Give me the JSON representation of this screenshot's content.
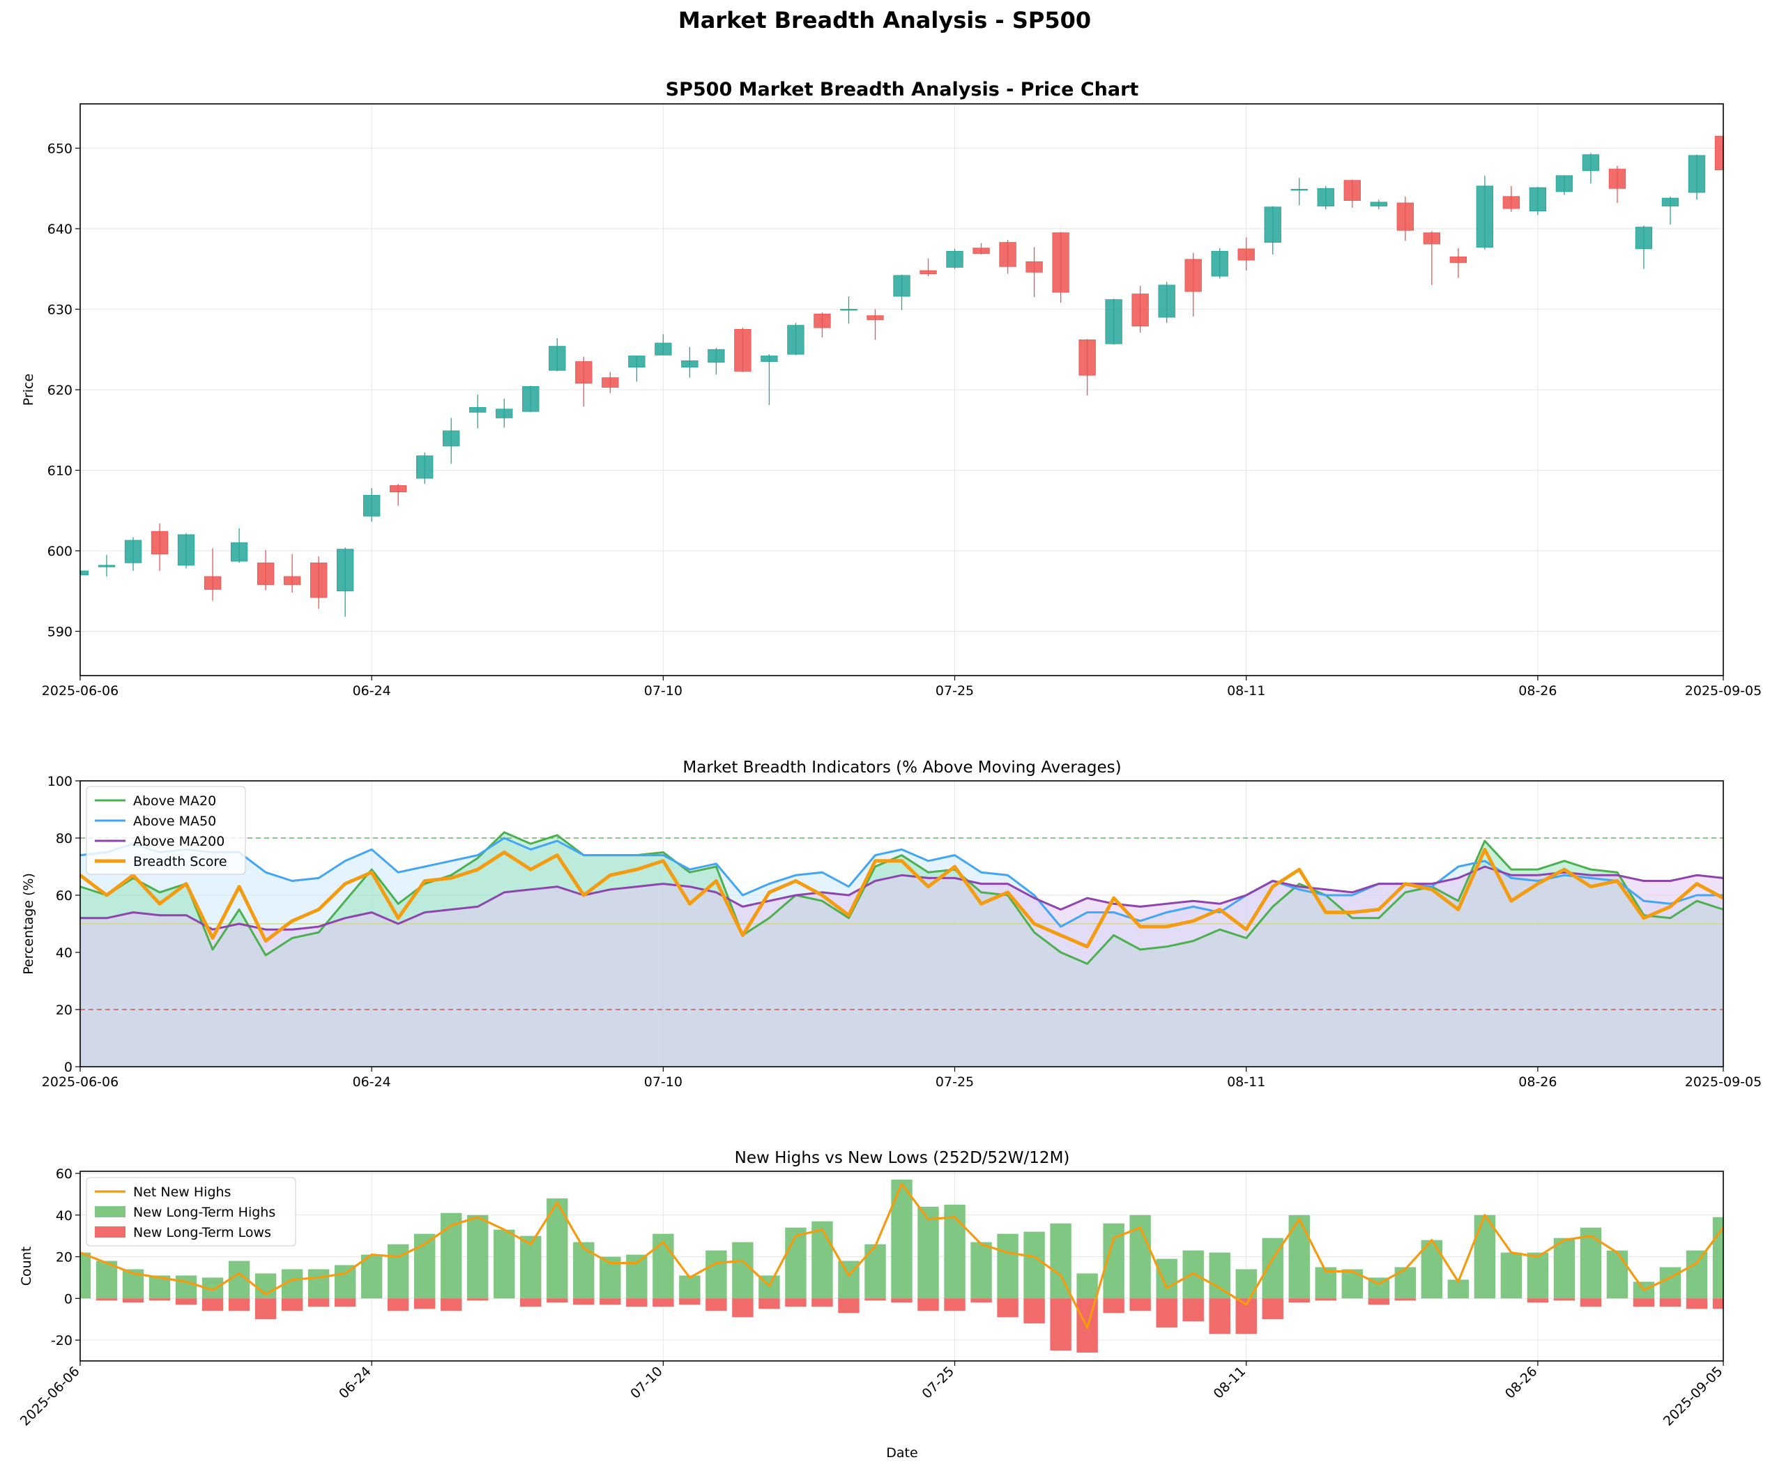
{
  "figure_title": "Market Breadth Analysis - SP500",
  "chart_data": [
    {
      "type": "candlestick",
      "title": "SP500 Market Breadth Analysis - Price Chart",
      "xlabel": "",
      "ylabel": "Price",
      "ylim": [
        584.5,
        655.5
      ],
      "yticks": [
        590,
        600,
        610,
        620,
        630,
        640,
        650
      ],
      "grid": true,
      "xtick_labels": [
        "2025-06-06",
        "06-24",
        "07-10",
        "07-25",
        "08-11",
        "08-26",
        "2025-09-05"
      ],
      "colors": {
        "up": "#26a69a",
        "down": "#ef5350"
      },
      "ohlc": [
        [
          597.0,
          597.6,
          597.0,
          597.5
        ],
        [
          598.0,
          599.5,
          596.8,
          598.2
        ],
        [
          598.5,
          601.7,
          597.5,
          601.3
        ],
        [
          602.4,
          603.4,
          597.5,
          599.6
        ],
        [
          598.2,
          602.2,
          597.8,
          602.0
        ],
        [
          596.8,
          600.3,
          593.8,
          595.2
        ],
        [
          598.7,
          602.8,
          598.5,
          601.0
        ],
        [
          598.5,
          600.1,
          595.1,
          595.8
        ],
        [
          596.8,
          599.6,
          594.8,
          595.8
        ],
        [
          598.5,
          599.3,
          592.8,
          594.2
        ],
        [
          595.0,
          600.4,
          591.8,
          600.2
        ],
        [
          604.3,
          607.8,
          603.6,
          606.9
        ],
        [
          608.1,
          608.3,
          605.6,
          607.3
        ],
        [
          609.0,
          612.2,
          608.3,
          611.8
        ],
        [
          613.0,
          616.5,
          610.8,
          614.9
        ],
        [
          617.2,
          619.4,
          615.2,
          617.8
        ],
        [
          616.5,
          618.9,
          615.3,
          617.6
        ],
        [
          617.3,
          620.5,
          617.2,
          620.4
        ],
        [
          622.4,
          626.4,
          622.3,
          625.4
        ],
        [
          623.5,
          624.1,
          617.9,
          620.8
        ],
        [
          621.5,
          622.2,
          619.6,
          620.3
        ],
        [
          622.8,
          624.2,
          621.0,
          624.2
        ],
        [
          624.3,
          626.9,
          624.3,
          625.8
        ],
        [
          622.8,
          625.3,
          621.5,
          623.6
        ],
        [
          623.4,
          625.2,
          621.9,
          625.0
        ],
        [
          627.5,
          627.7,
          622.2,
          622.3
        ],
        [
          623.5,
          624.4,
          618.1,
          624.2
        ],
        [
          624.4,
          628.3,
          624.3,
          628.0
        ],
        [
          629.4,
          629.6,
          626.5,
          627.7
        ],
        [
          630.0,
          631.6,
          628.2,
          630.0
        ],
        [
          629.2,
          630.0,
          626.2,
          628.7
        ],
        [
          631.6,
          634.3,
          629.9,
          634.2
        ],
        [
          634.8,
          636.3,
          634.1,
          634.4
        ],
        [
          635.2,
          637.5,
          635.0,
          637.2
        ],
        [
          637.6,
          638.2,
          636.8,
          636.9
        ],
        [
          638.3,
          638.6,
          634.4,
          635.3
        ],
        [
          635.9,
          637.7,
          631.5,
          634.6
        ],
        [
          639.5,
          639.6,
          630.8,
          632.1
        ],
        [
          626.2,
          626.3,
          619.3,
          621.8
        ],
        [
          625.7,
          631.3,
          625.6,
          631.2
        ],
        [
          631.9,
          632.9,
          627.1,
          627.9
        ],
        [
          629.0,
          633.4,
          628.3,
          633.0
        ],
        [
          636.2,
          637.0,
          629.1,
          632.2
        ],
        [
          634.1,
          637.6,
          633.8,
          637.2
        ],
        [
          637.5,
          638.9,
          634.8,
          636.1
        ],
        [
          638.3,
          642.8,
          636.8,
          642.7
        ],
        [
          644.9,
          646.3,
          642.9,
          644.9
        ],
        [
          642.8,
          645.3,
          642.4,
          645.0
        ],
        [
          646.0,
          646.1,
          642.6,
          643.5
        ],
        [
          642.8,
          643.6,
          642.4,
          643.3
        ],
        [
          643.2,
          644.0,
          638.5,
          639.8
        ],
        [
          639.5,
          639.7,
          633.0,
          638.1
        ],
        [
          636.5,
          637.6,
          633.9,
          635.8
        ],
        [
          637.7,
          646.6,
          637.4,
          645.3
        ],
        [
          644.0,
          645.3,
          642.1,
          642.5
        ],
        [
          642.2,
          645.2,
          641.7,
          645.1
        ],
        [
          644.6,
          646.6,
          644.2,
          646.6
        ],
        [
          647.2,
          649.4,
          645.6,
          649.2
        ],
        [
          647.4,
          647.8,
          643.2,
          645.0
        ],
        [
          637.5,
          640.4,
          635.0,
          640.2
        ],
        [
          642.8,
          644.0,
          640.5,
          643.8
        ],
        [
          644.5,
          649.2,
          643.6,
          649.1
        ],
        [
          651.5,
          651.6,
          647.3,
          647.3
        ]
      ]
    },
    {
      "type": "area",
      "title": "Market Breadth Indicators (% Above Moving Averages)",
      "xlabel": "",
      "ylabel": "Percentage (%)",
      "ylim": [
        0,
        100
      ],
      "yticks": [
        0,
        20,
        40,
        60,
        80,
        100
      ],
      "grid": true,
      "legend": "upper-left",
      "xtick_labels": [
        "2025-06-06",
        "06-24",
        "07-10",
        "07-25",
        "08-11",
        "08-26",
        "2025-09-05"
      ],
      "reference_lines": [
        {
          "y": 80,
          "color": "#4caf50",
          "style": "dashed"
        },
        {
          "y": 50,
          "color": "#d4d86a",
          "style": "solid"
        },
        {
          "y": 20,
          "color": "#e53935",
          "style": "dashed"
        }
      ],
      "series": [
        {
          "name": "Above MA20",
          "color": "#4caf50",
          "fill": "#9be3c0",
          "values": [
            63,
            60,
            66,
            61,
            64,
            41,
            55,
            39,
            45,
            47,
            58,
            69,
            57,
            64,
            67,
            73,
            82,
            78,
            81,
            74,
            74,
            74,
            75,
            68,
            70,
            46,
            52,
            60,
            58,
            52,
            70,
            74,
            68,
            69,
            61,
            60,
            47,
            40,
            36,
            46,
            41,
            42,
            44,
            48,
            45,
            56,
            64,
            60,
            52,
            52,
            61,
            63,
            58,
            79,
            69,
            69,
            72,
            69,
            68,
            53,
            52,
            58,
            55
          ]
        },
        {
          "name": "Above MA50",
          "color": "#42a5f5",
          "fill": "#cde9fb",
          "values": [
            74,
            75,
            78,
            75,
            76,
            75,
            75,
            68,
            65,
            66,
            72,
            76,
            68,
            70,
            72,
            74,
            80,
            76,
            79,
            74,
            74,
            74,
            74,
            69,
            71,
            60,
            64,
            67,
            68,
            63,
            74,
            76,
            72,
            74,
            68,
            67,
            60,
            49,
            54,
            54,
            51,
            54,
            56,
            54,
            60,
            65,
            62,
            60,
            60,
            64,
            64,
            63,
            70,
            72,
            66,
            65,
            67,
            66,
            65,
            58,
            57,
            60,
            60
          ]
        },
        {
          "name": "Above MA200",
          "color": "#8e44ad",
          "fill": "#e2c8f0",
          "values": [
            52,
            52,
            54,
            53,
            53,
            48,
            50,
            48,
            48,
            49,
            52,
            54,
            50,
            54,
            55,
            56,
            61,
            62,
            63,
            60,
            62,
            63,
            64,
            63,
            61,
            56,
            58,
            60,
            61,
            60,
            65,
            67,
            66,
            66,
            64,
            64,
            59,
            55,
            59,
            57,
            56,
            57,
            58,
            57,
            60,
            65,
            63,
            62,
            61,
            64,
            64,
            64,
            66,
            70,
            67,
            67,
            68,
            67,
            67,
            65,
            65,
            67,
            66
          ]
        },
        {
          "name": "Breadth Score",
          "color": "#f39c12",
          "values": [
            67,
            60,
            67,
            57,
            64,
            45,
            63,
            44,
            51,
            55,
            64,
            68,
            52,
            65,
            66,
            69,
            75,
            69,
            74,
            60,
            67,
            69,
            72,
            57,
            65,
            46,
            61,
            65,
            60,
            53,
            72,
            72,
            63,
            70,
            57,
            61,
            50,
            46,
            42,
            59,
            49,
            49,
            51,
            55,
            48,
            63,
            69,
            54,
            54,
            55,
            64,
            62,
            55,
            76,
            58,
            64,
            69,
            63,
            65,
            52,
            56,
            64,
            59
          ]
        }
      ]
    },
    {
      "type": "bar+line",
      "title": "New Highs vs New Lows (252D/52W/12M)",
      "xlabel": "Date",
      "ylabel": "Count",
      "ylim": [
        -30,
        61
      ],
      "yticks": [
        -20,
        0,
        20,
        40,
        60
      ],
      "grid": true,
      "legend": "upper-left",
      "xtick_labels": [
        "2025-06-06",
        "06-24",
        "07-10",
        "07-25",
        "08-11",
        "08-26",
        "2025-09-05"
      ],
      "series": [
        {
          "name": "Net New Highs",
          "color": "#f39c12",
          "values": [
            22,
            17,
            12,
            10,
            8,
            4,
            12,
            2,
            9,
            10,
            12,
            21,
            20,
            26,
            35,
            39,
            33,
            26,
            46,
            24,
            17,
            17,
            27,
            10,
            17,
            18,
            6,
            30,
            33,
            11,
            25,
            55,
            38,
            39,
            26,
            22,
            20,
            11,
            -14,
            29,
            34,
            5,
            12,
            5,
            -3,
            19,
            38,
            13,
            13,
            7,
            14,
            28,
            8,
            40,
            22,
            20,
            28,
            30,
            22,
            4,
            10,
            17,
            34
          ]
        },
        {
          "name": "New Long-Term Highs",
          "color": "#81c784",
          "values": [
            22,
            18,
            14,
            11,
            11,
            10,
            18,
            12,
            14,
            14,
            16,
            21,
            26,
            31,
            41,
            40,
            33,
            30,
            48,
            27,
            20,
            21,
            31,
            11,
            23,
            27,
            11,
            34,
            37,
            18,
            26,
            57,
            44,
            45,
            27,
            31,
            32,
            36,
            12,
            36,
            40,
            19,
            23,
            22,
            14,
            29,
            40,
            15,
            14,
            10,
            15,
            28,
            9,
            40,
            22,
            22,
            29,
            34,
            23,
            8,
            15,
            23,
            39
          ]
        },
        {
          "name": "New Long-Term Lows",
          "color": "#f26b6b",
          "values": [
            0,
            -1,
            -2,
            -1,
            -3,
            -6,
            -6,
            -10,
            -6,
            -4,
            -4,
            0,
            -6,
            -5,
            -6,
            -1,
            0,
            -4,
            -2,
            -3,
            -3,
            -4,
            -4,
            -3,
            -6,
            -9,
            -5,
            -4,
            -4,
            -7,
            -1,
            -2,
            -6,
            -6,
            -2,
            -9,
            -12,
            -25,
            -26,
            -7,
            -6,
            -14,
            -11,
            -17,
            -17,
            -10,
            -2,
            -1,
            0,
            -3,
            -1,
            0,
            0,
            0,
            0,
            -2,
            -1,
            -4,
            0,
            -4,
            -4,
            -5,
            -5
          ]
        }
      ]
    }
  ]
}
